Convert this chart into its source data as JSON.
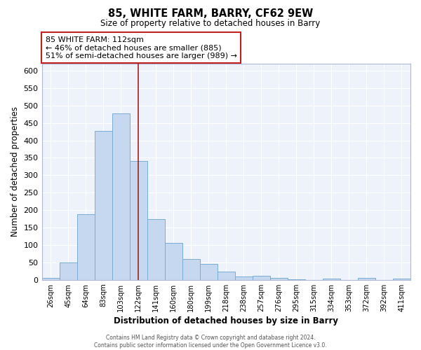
{
  "title": "85, WHITE FARM, BARRY, CF62 9EW",
  "subtitle": "Size of property relative to detached houses in Barry",
  "xlabel": "Distribution of detached houses by size in Barry",
  "ylabel": "Number of detached properties",
  "bar_color": "#c5d8f0",
  "bar_edge_color": "#7aadd4",
  "bg_color": "#eef2fa",
  "grid_color": "#ffffff",
  "fig_bg_color": "#ffffff",
  "categories": [
    "26sqm",
    "45sqm",
    "64sqm",
    "83sqm",
    "103sqm",
    "122sqm",
    "141sqm",
    "160sqm",
    "180sqm",
    "199sqm",
    "218sqm",
    "238sqm",
    "257sqm",
    "276sqm",
    "295sqm",
    "315sqm",
    "334sqm",
    "353sqm",
    "372sqm",
    "392sqm",
    "411sqm"
  ],
  "values": [
    5,
    50,
    188,
    428,
    478,
    340,
    175,
    107,
    60,
    46,
    24,
    9,
    12,
    5,
    2,
    0,
    4,
    0,
    5,
    0,
    4
  ],
  "ylim": [
    0,
    620
  ],
  "yticks": [
    0,
    50,
    100,
    150,
    200,
    250,
    300,
    350,
    400,
    450,
    500,
    550,
    600
  ],
  "vline_color": "#a02020",
  "annotation_text": "85 WHITE FARM: 112sqm\n← 46% of detached houses are smaller (885)\n51% of semi-detached houses are larger (989) →",
  "annotation_box_color": "#ffffff",
  "annotation_box_edge": "#c02020",
  "footer_line1": "Contains HM Land Registry data © Crown copyright and database right 2024.",
  "footer_line2": "Contains public sector information licensed under the Open Government Licence v3.0."
}
